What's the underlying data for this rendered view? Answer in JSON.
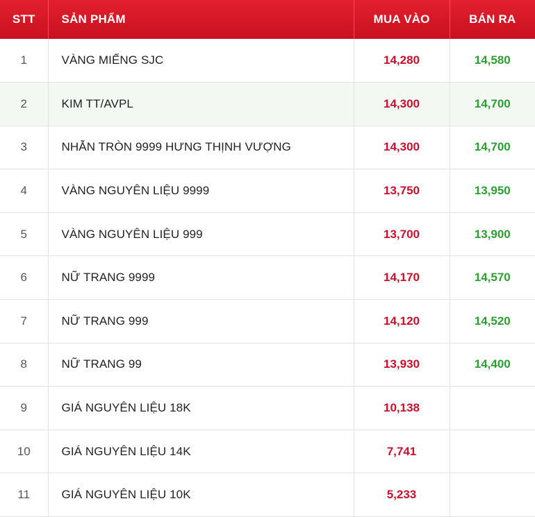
{
  "table": {
    "headers": {
      "stt": "STT",
      "product": "SẢN PHẨM",
      "buy": "MUA VÀO",
      "sell": "BÁN RA"
    },
    "colors": {
      "header_background": "#d8172a",
      "buy_price": "#c8102e",
      "sell_price": "#2e9d35",
      "highlight_row": "#f3f8f3"
    },
    "highlighted_row": 2,
    "rows": [
      {
        "stt": "1",
        "product": "VÀNG MIẾNG SJC",
        "buy": "14,280",
        "sell": "14,580"
      },
      {
        "stt": "2",
        "product": "KIM TT/AVPL",
        "buy": "14,300",
        "sell": "14,700"
      },
      {
        "stt": "3",
        "product": "NHẪN TRÒN 9999 HƯNG THỊNH VƯỢNG",
        "buy": "14,300",
        "sell": "14,700"
      },
      {
        "stt": "4",
        "product": "VÀNG NGUYÊN LIỆU 9999",
        "buy": "13,750",
        "sell": "13,950"
      },
      {
        "stt": "5",
        "product": "VÀNG NGUYÊN LIỆU 999",
        "buy": "13,700",
        "sell": "13,900"
      },
      {
        "stt": "6",
        "product": "NỮ TRANG 9999",
        "buy": "14,170",
        "sell": "14,570"
      },
      {
        "stt": "7",
        "product": "NỮ TRANG 999",
        "buy": "14,120",
        "sell": "14,520"
      },
      {
        "stt": "8",
        "product": "NỮ TRANG 99",
        "buy": "13,930",
        "sell": "14,400"
      },
      {
        "stt": "9",
        "product": "GIÁ NGUYÊN LIỆU 18K",
        "buy": "10,138",
        "sell": ""
      },
      {
        "stt": "10",
        "product": "GIÁ NGUYÊN LIỆU 14K",
        "buy": "7,741",
        "sell": ""
      },
      {
        "stt": "11",
        "product": "GIÁ NGUYÊN LIỆU 10K",
        "buy": "5,233",
        "sell": ""
      }
    ]
  }
}
